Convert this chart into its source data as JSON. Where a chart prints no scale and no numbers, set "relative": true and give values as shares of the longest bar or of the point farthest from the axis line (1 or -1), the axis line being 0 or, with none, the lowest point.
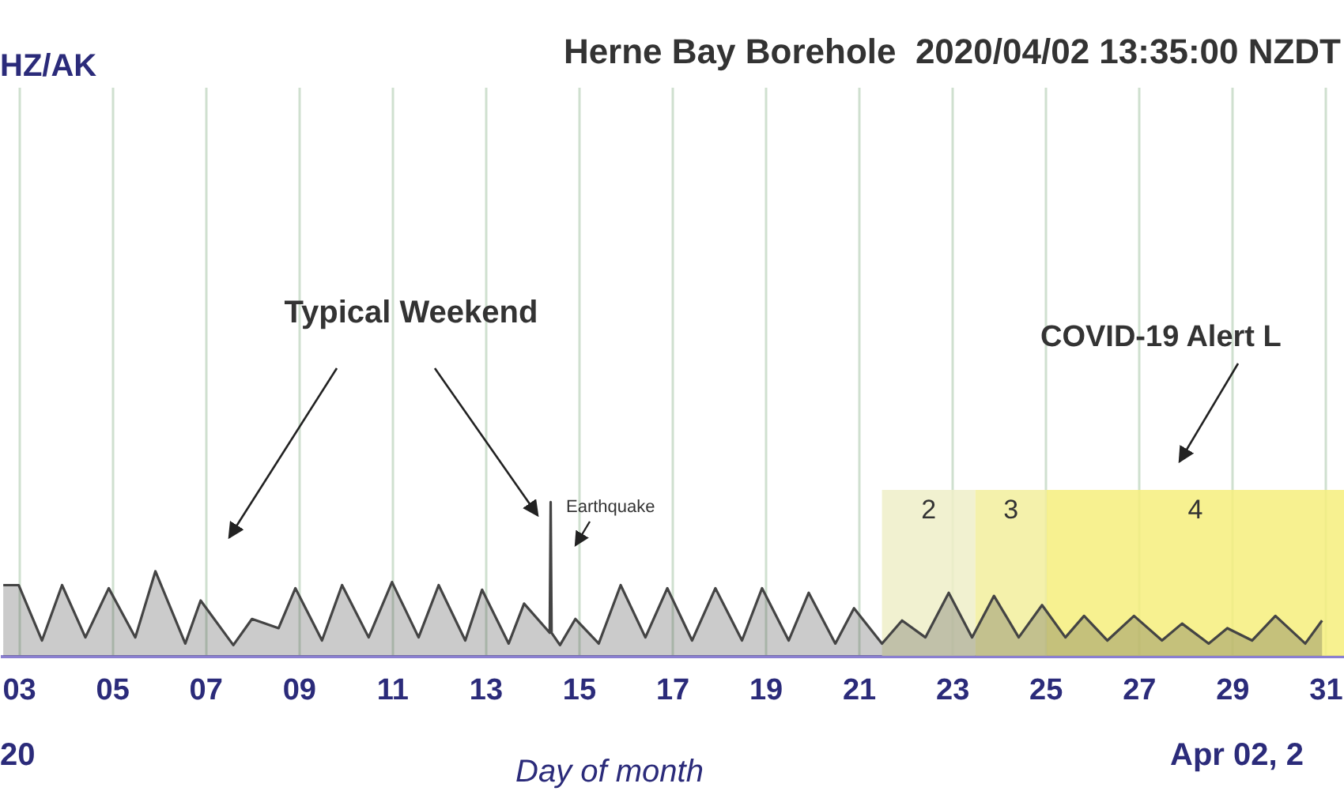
{
  "chart_data": {
    "type": "area",
    "title": "Herne Bay Borehole  2020/04/02 13:35:00 NZDT",
    "xlabel": "Day of month",
    "relative": true,
    "grid": "x",
    "annotations": [
      "HZ/AK",
      "Typical Weekend",
      "Earthquake",
      "COVID-19 Alert L",
      "20",
      "Apr 02, 2"
    ],
    "xlim": [
      2.6,
      31.4
    ],
    "xticks": [
      {
        "value": 3,
        "label": "03"
      },
      {
        "value": 5,
        "label": "05"
      },
      {
        "value": 7,
        "label": "07"
      },
      {
        "value": 9,
        "label": "09"
      },
      11,
      13,
      15,
      17,
      19,
      21,
      23,
      25,
      27,
      29,
      31
    ],
    "bands": [
      {
        "axis": "x",
        "from": 21.5,
        "to": 23.5,
        "label": "2",
        "color": "#eeeec8"
      },
      {
        "axis": "x",
        "from": 23.5,
        "to": 25.03,
        "label": "3",
        "color": "#f2ee9c"
      },
      {
        "axis": "x",
        "from": 25.03,
        "to": 31.4,
        "label": "4",
        "color": "#f6ee7c"
      }
    ],
    "series": [
      {
        "color": "#444444",
        "x": [
          2.67,
          3.0,
          3.5,
          3.93,
          4.43,
          4.93,
          5.5,
          5.93,
          6.57,
          6.9,
          7.6,
          8.0,
          8.57,
          8.93,
          9.5,
          9.93,
          10.5,
          11.0,
          11.57,
          12.0,
          12.57,
          12.93,
          13.5,
          13.83,
          14.38,
          14.4,
          14.42,
          14.6,
          14.93,
          15.43,
          15.9,
          16.43,
          16.9,
          17.43,
          17.93,
          18.5,
          18.93,
          19.5,
          19.93,
          20.5,
          20.9,
          21.5,
          21.93,
          22.43,
          22.93,
          23.43,
          23.9,
          24.43,
          24.93,
          25.43,
          25.83,
          26.33,
          26.9,
          27.5,
          27.93,
          28.5,
          28.9,
          29.43,
          29.93,
          30.57,
          30.93
        ],
        "values": [
          0.46,
          0.46,
          0.1,
          0.46,
          0.12,
          0.44,
          0.12,
          0.55,
          0.08,
          0.36,
          0.07,
          0.24,
          0.18,
          0.44,
          0.1,
          0.46,
          0.12,
          0.48,
          0.12,
          0.46,
          0.1,
          0.43,
          0.08,
          0.34,
          0.15,
          1.0,
          0.15,
          0.07,
          0.24,
          0.08,
          0.46,
          0.12,
          0.44,
          0.1,
          0.44,
          0.1,
          0.44,
          0.1,
          0.41,
          0.08,
          0.31,
          0.08,
          0.23,
          0.12,
          0.41,
          0.12,
          0.39,
          0.12,
          0.33,
          0.12,
          0.26,
          0.1,
          0.26,
          0.1,
          0.21,
          0.08,
          0.18,
          0.1,
          0.26,
          0.08,
          0.23
        ]
      }
    ]
  }
}
